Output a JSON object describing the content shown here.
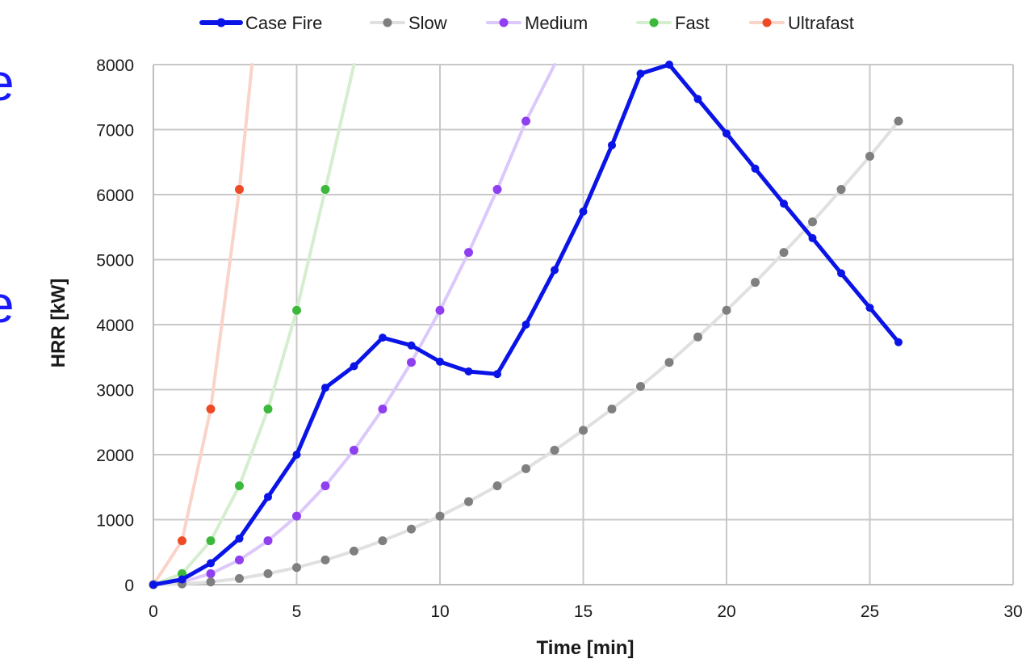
{
  "edge_fragments": [
    "e",
    "e"
  ],
  "chart_data": {
    "type": "line",
    "title": "",
    "xlabel": "Time [min]",
    "ylabel": "HRR [kW]",
    "xlim": [
      0,
      30
    ],
    "ylim": [
      0,
      8000
    ],
    "xticks": [
      0,
      5,
      10,
      15,
      20,
      25,
      30
    ],
    "yticks": [
      0,
      1000,
      2000,
      3000,
      4000,
      5000,
      6000,
      7000,
      8000
    ],
    "grid": true,
    "legend": "top",
    "series": [
      {
        "name": "Case Fire",
        "color": "#0a14e6",
        "width": 5,
        "line_opacity": 1,
        "x": [
          0,
          1,
          2,
          3,
          4,
          5,
          6,
          7,
          8,
          9,
          10,
          11,
          12,
          13,
          14,
          15,
          16,
          17,
          18,
          19,
          20,
          21,
          22,
          23,
          24,
          25,
          26
        ],
        "y": [
          0,
          80,
          330,
          710,
          1350,
          2000,
          3030,
          3360,
          3800,
          3680,
          3430,
          3280,
          3240,
          4000,
          4840,
          5740,
          6760,
          7860,
          8000,
          7470,
          6940,
          6400,
          5860,
          5330,
          4790,
          4260,
          3730
        ]
      },
      {
        "name": "Slow",
        "color": "#7f7f7f",
        "line_color": "#e0e0e0",
        "width": 4,
        "line_opacity": 1,
        "x": [
          0,
          1,
          2,
          3,
          4,
          5,
          6,
          7,
          8,
          9,
          10,
          11,
          12,
          13,
          14,
          15,
          16,
          17,
          18,
          19,
          20,
          21,
          22,
          23,
          24,
          25,
          26
        ],
        "y": [
          0,
          11,
          42,
          95,
          169,
          264,
          380,
          517,
          675,
          855,
          1055,
          1277,
          1520,
          1784,
          2069,
          2375,
          2702,
          3050,
          3420,
          3810,
          4220,
          4650,
          5110,
          5580,
          6080,
          6590,
          7130
        ]
      },
      {
        "name": "Medium",
        "color": "#8f3ff0",
        "line_color": "#dcc8fb",
        "width": 4,
        "line_opacity": 1,
        "x": [
          0,
          1,
          2,
          3,
          4,
          5,
          6,
          7,
          8,
          9,
          10,
          11,
          12,
          13,
          14
        ],
        "y": [
          0,
          42,
          169,
          380,
          675,
          1055,
          1520,
          2069,
          2702,
          3420,
          4220,
          5110,
          6080,
          7130,
          8000
        ]
      },
      {
        "name": "Fast",
        "color": "#3cb83c",
        "line_color": "#d4eecf",
        "width": 4,
        "line_opacity": 1,
        "x": [
          0,
          1,
          2,
          3,
          4,
          5,
          6,
          7
        ],
        "y": [
          0,
          169,
          675,
          1520,
          2702,
          4220,
          6080,
          8000
        ]
      },
      {
        "name": "Ultrafast",
        "color": "#ee4a25",
        "line_color": "#fad3c9",
        "width": 4,
        "line_opacity": 1,
        "x": [
          0,
          1,
          2,
          3,
          3.44
        ],
        "y": [
          0,
          675,
          2702,
          6080,
          8000
        ]
      }
    ]
  }
}
